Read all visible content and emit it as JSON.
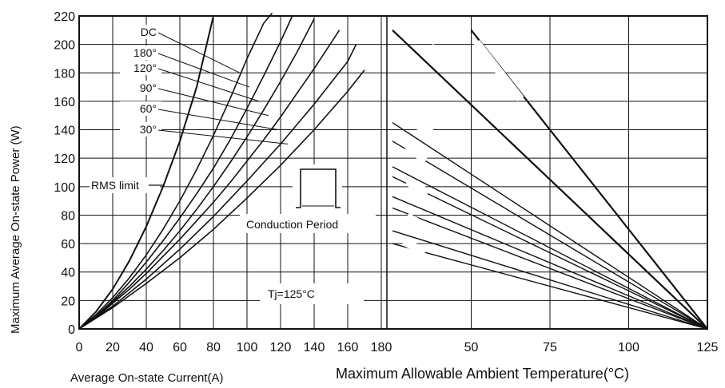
{
  "chart_data": [
    {
      "type": "line",
      "title": "",
      "xlabel": "Average On-state Current(A)",
      "ylabel": "Maximum Average On-state Power (W)",
      "xlim": [
        0,
        180
      ],
      "ylim": [
        0,
        220
      ],
      "x_ticks": [
        "0",
        "20",
        "40",
        "60",
        "80",
        "100",
        "120",
        "140",
        "160",
        "180"
      ],
      "y_ticks": [
        "0",
        "20",
        "40",
        "60",
        "80",
        "100",
        "120",
        "140",
        "160",
        "180",
        "200",
        "220"
      ],
      "grid": true,
      "legend_labels": [
        "DC",
        "180°",
        "120°",
        "90°",
        "60°",
        "30°"
      ],
      "rms_label": "RMS limit",
      "conduction_label": "Conduction Period",
      "tj_label": "Tj=125°C",
      "series": [
        {
          "label": "RMS limit",
          "x": [
            0,
            10,
            20,
            30,
            40,
            50,
            60,
            70,
            80
          ],
          "y": [
            0,
            12,
            28,
            48,
            72,
            100,
            132,
            170,
            220
          ]
        },
        {
          "label": "",
          "x": [
            0,
            10,
            20,
            30,
            40,
            50,
            60,
            70,
            80,
            90,
            100,
            110,
            115
          ],
          "y": [
            0,
            10,
            22,
            36,
            52,
            70,
            90,
            112,
            136,
            162,
            190,
            215,
            222
          ]
        },
        {
          "label": "",
          "x": [
            0,
            10,
            20,
            30,
            40,
            50,
            60,
            70,
            80,
            90,
            100,
            110,
            120,
            127
          ],
          "y": [
            0,
            9,
            20,
            33,
            47,
            62,
            78,
            95,
            113,
            133,
            155,
            178,
            202,
            220
          ]
        },
        {
          "label": "",
          "x": [
            0,
            10,
            20,
            30,
            40,
            50,
            60,
            70,
            80,
            90,
            100,
            110,
            120,
            130,
            140
          ],
          "y": [
            0,
            9,
            19,
            30,
            42,
            55,
            69,
            84,
            100,
            117,
            135,
            154,
            174,
            195,
            218
          ]
        },
        {
          "label": "",
          "x": [
            0,
            10,
            20,
            30,
            40,
            50,
            60,
            70,
            80,
            90,
            100,
            110,
            120,
            130,
            140,
            150,
            155
          ],
          "y": [
            0,
            8,
            18,
            28,
            39,
            51,
            63,
            76,
            89,
            103,
            118,
            133,
            149,
            166,
            183,
            201,
            210
          ]
        },
        {
          "label": "",
          "x": [
            0,
            20,
            40,
            60,
            80,
            100,
            120,
            140,
            160,
            165
          ],
          "y": [
            0,
            16,
            35,
            56,
            79,
            104,
            130,
            158,
            188,
            200
          ]
        },
        {
          "label": "",
          "x": [
            0,
            20,
            40,
            60,
            80,
            100,
            120,
            140,
            160,
            170
          ],
          "y": [
            0,
            15,
            32,
            50,
            70,
            92,
            115,
            140,
            167,
            182
          ]
        }
      ]
    },
    {
      "type": "line",
      "title": "",
      "xlabel": "Maximum Allowable Ambient Temperature(°C)",
      "ylabel": "",
      "xlim": [
        25,
        125
      ],
      "ylim": [
        0,
        220
      ],
      "x_ticks": [
        "50",
        "75",
        "100",
        "125"
      ],
      "grid": true,
      "series": [
        {
          "label": "",
          "x": [
            50,
            125
          ],
          "y": [
            210,
            0
          ]
        },
        {
          "label": "",
          "x": [
            25,
            125
          ],
          "y": [
            210,
            0
          ]
        },
        {
          "label": "",
          "x": [
            25,
            125
          ],
          "y": [
            145,
            0
          ]
        },
        {
          "label": "",
          "x": [
            25,
            125
          ],
          "y": [
            132,
            0
          ]
        },
        {
          "label": "",
          "x": [
            25,
            125
          ],
          "y": [
            114,
            0
          ]
        },
        {
          "label": "",
          "x": [
            25,
            125
          ],
          "y": [
            107,
            0
          ]
        },
        {
          "label": "",
          "x": [
            25,
            125
          ],
          "y": [
            93,
            0
          ]
        },
        {
          "label": "",
          "x": [
            25,
            125
          ],
          "y": [
            85,
            0
          ]
        },
        {
          "label": "",
          "x": [
            25,
            125
          ],
          "y": [
            69,
            0
          ]
        },
        {
          "label": "",
          "x": [
            25,
            125
          ],
          "y": [
            60,
            0
          ]
        }
      ]
    }
  ]
}
